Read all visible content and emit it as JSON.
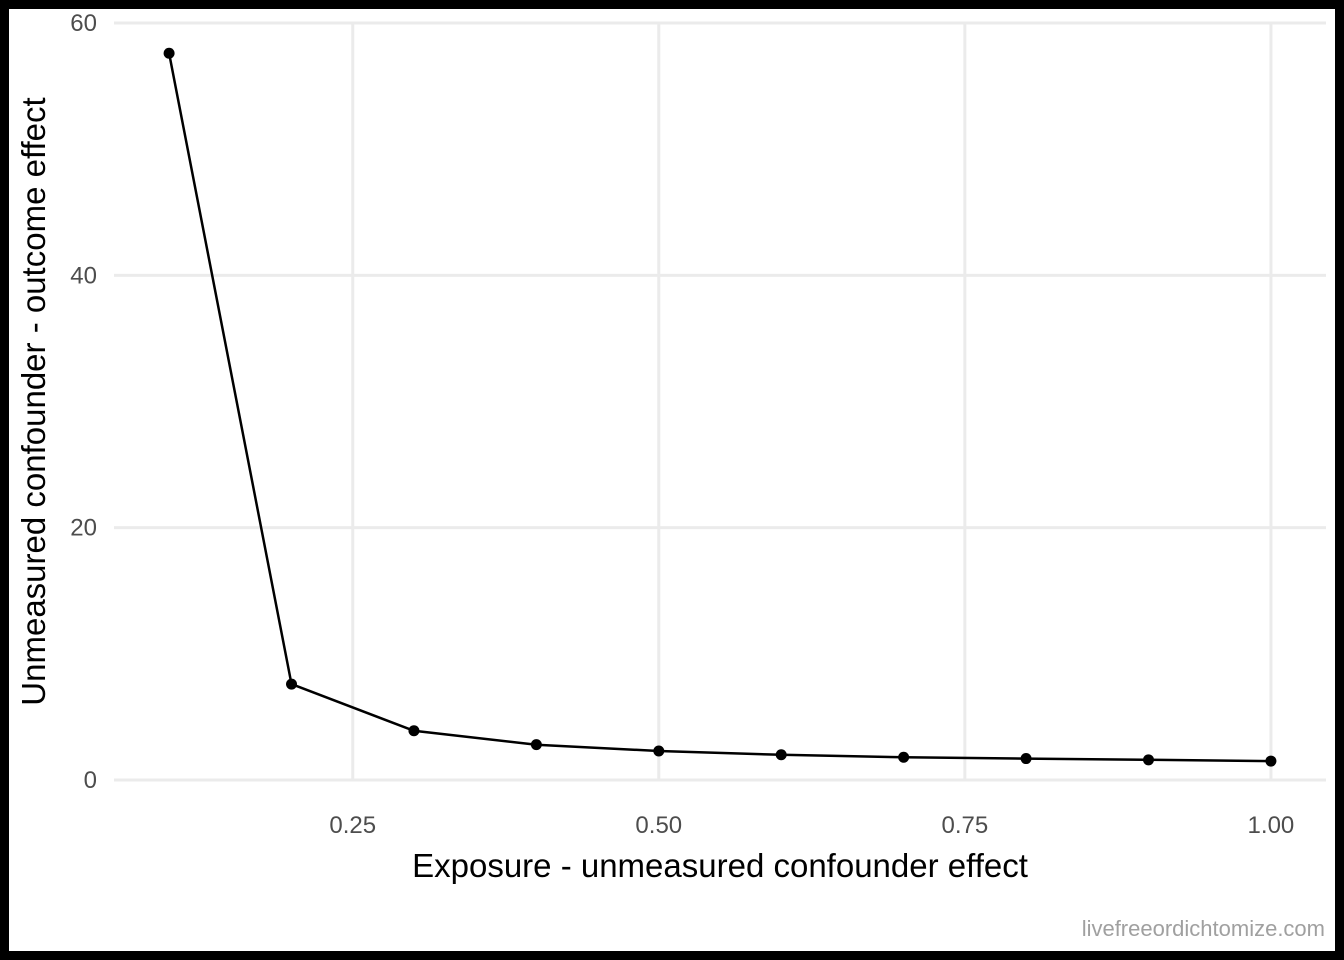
{
  "chart_data": {
    "type": "line",
    "x": [
      0.1,
      0.2,
      0.3,
      0.4,
      0.5,
      0.6,
      0.7,
      0.8,
      0.9,
      1.0
    ],
    "series": [
      {
        "values": [
          57.6,
          7.6,
          3.9,
          2.8,
          2.3,
          2.0,
          1.8,
          1.7,
          1.6,
          1.5
        ]
      }
    ],
    "xlabel": "Exposure - unmeasured confounder effect",
    "ylabel": "Unmeasured confounder - outcome effect",
    "xlim": [
      0.055,
      1.045
    ],
    "ylim": [
      0,
      60
    ],
    "x_ticks": [
      0.25,
      0.5,
      0.75,
      1.0
    ],
    "x_tick_labels": [
      "0.25",
      "0.50",
      "0.75",
      "1.00"
    ],
    "y_ticks": [
      0,
      20,
      40,
      60
    ],
    "y_tick_labels": [
      "0",
      "20",
      "40",
      "60"
    ],
    "grid": true,
    "line_color": "#000000",
    "grid_color": "#ebebeb"
  },
  "watermark": "livefreeordichtomize.com"
}
